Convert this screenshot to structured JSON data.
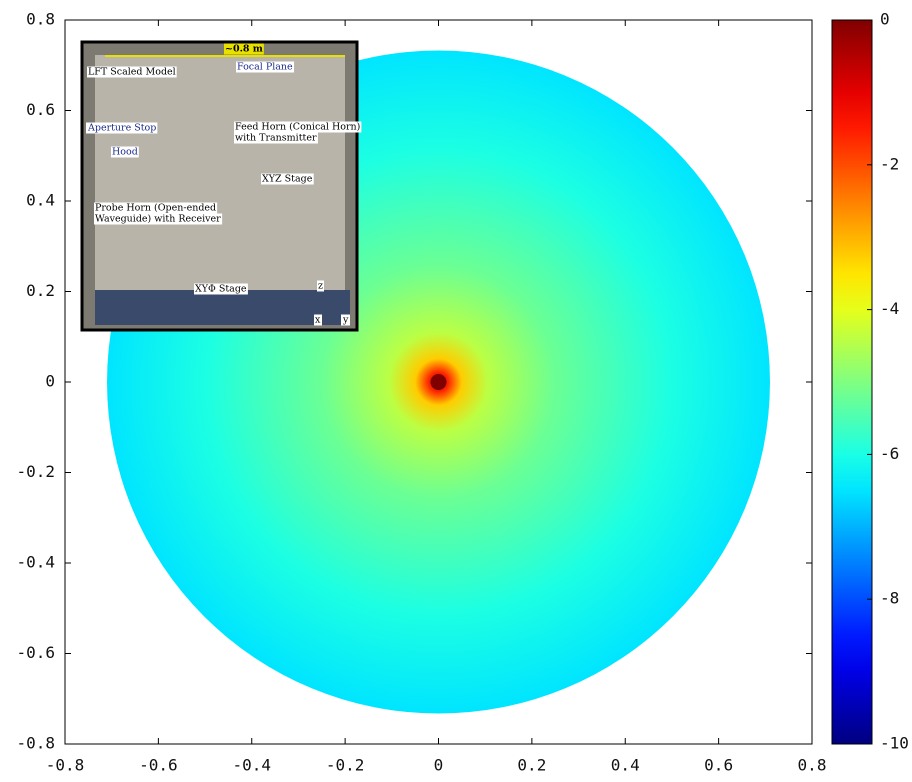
{
  "chart_data": {
    "type": "heatmap",
    "xlim": [
      -0.8,
      0.8
    ],
    "ylim": [
      -0.8,
      0.8
    ],
    "xticks": [
      -0.8,
      -0.6,
      -0.4,
      -0.2,
      0,
      0.2,
      0.4,
      0.6,
      0.8
    ],
    "yticks": [
      -0.8,
      -0.6,
      -0.4,
      -0.2,
      0,
      0.2,
      0.4,
      0.6,
      0.8
    ],
    "colormap": "jet",
    "zlim": [
      -10,
      0
    ],
    "zticks": [
      -10,
      -8,
      -6,
      -4,
      -2,
      0
    ],
    "peak": {
      "x": 0,
      "y": 0,
      "value": 0
    },
    "edge": {
      "radius": 0.71,
      "value": -6.5
    },
    "inset": {
      "labels": [
        "~0.8 m",
        "LFT Scaled Model",
        "Focal Plane",
        "Aperture Stop",
        "Feed Horn (Conical Horn)",
        "with Transmitter",
        "Hood",
        "XYZ Stage",
        "Probe Horn (Open-ended",
        "Waveguide) with Receiver",
        "XYΦ Stage",
        "z",
        "x",
        "y"
      ]
    }
  }
}
